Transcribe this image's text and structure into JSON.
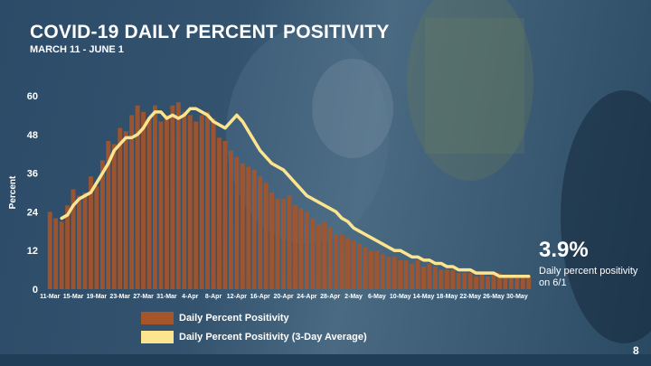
{
  "slide": {
    "title": "COVID-19 DAILY PERCENT POSITIVITY",
    "subtitle": "MARCH 11 - JUNE 1",
    "page_number": "8"
  },
  "callout": {
    "value": "3.9%",
    "text": "Daily percent positivity on 6/1"
  },
  "legend": {
    "bars_label": "Daily Percent Positivity",
    "line_label": "Daily Percent Positivity (3-Day Average)"
  },
  "colors": {
    "bar": "#a5552a",
    "line": "#fde58f",
    "text": "#ffffff"
  },
  "chart_data": {
    "type": "bar",
    "title": "COVID-19 DAILY PERCENT POSITIVITY",
    "xlabel": "",
    "ylabel": "Percent",
    "ylim": [
      0,
      60
    ],
    "yticks": [
      0,
      12,
      24,
      36,
      48,
      60
    ],
    "grid": false,
    "legend_position": "bottom-left",
    "x_tick_labels": [
      "11-Mar",
      "15-Mar",
      "19-Mar",
      "23-Mar",
      "27-Mar",
      "31-Mar",
      "4-Apr",
      "8-Apr",
      "12-Apr",
      "16-Apr",
      "20-Apr",
      "24-Apr",
      "28-Apr",
      "2-May",
      "6-May",
      "10-May",
      "14-May",
      "18-May",
      "22-May",
      "26-May",
      "30-May"
    ],
    "series": [
      {
        "name": "Daily Percent Positivity",
        "type": "bar",
        "values": [
          24,
          22,
          21,
          26,
          31,
          29,
          30,
          35,
          32,
          40,
          46,
          45,
          50,
          49,
          54,
          57,
          55,
          53,
          57,
          52,
          54,
          57,
          58,
          55,
          54,
          52,
          54,
          55,
          53,
          47,
          46,
          43,
          41,
          39,
          38,
          37,
          35,
          33,
          30,
          28,
          28,
          29,
          26,
          25,
          24,
          22,
          20,
          21,
          19,
          17,
          17,
          16,
          15,
          14,
          13,
          12,
          12,
          11,
          10,
          10,
          9,
          9,
          8,
          9,
          7,
          8,
          7,
          6,
          6,
          6,
          5,
          5,
          5,
          4,
          5,
          4,
          5,
          5,
          4,
          4,
          4,
          4,
          3.9
        ]
      },
      {
        "name": "Daily Percent Positivity (3-Day Average)",
        "type": "line",
        "start_index": 2,
        "values": [
          22,
          23,
          26,
          28,
          29,
          30,
          33,
          36,
          39,
          43,
          45,
          47,
          47,
          48,
          50,
          53,
          55,
          55,
          53,
          54,
          53,
          54,
          56,
          56,
          55,
          54,
          52,
          51,
          50,
          52,
          54,
          52,
          49,
          46,
          43,
          41,
          39,
          38,
          37,
          35,
          33,
          31,
          29,
          28,
          27,
          26,
          25,
          24,
          22,
          21,
          19,
          18,
          17,
          16,
          15,
          14,
          13,
          12,
          12,
          11,
          10,
          10,
          9,
          9,
          8,
          8,
          7,
          7,
          6,
          6,
          6,
          5,
          5,
          5,
          5,
          4,
          4,
          4,
          4,
          4,
          4
        ]
      }
    ]
  }
}
